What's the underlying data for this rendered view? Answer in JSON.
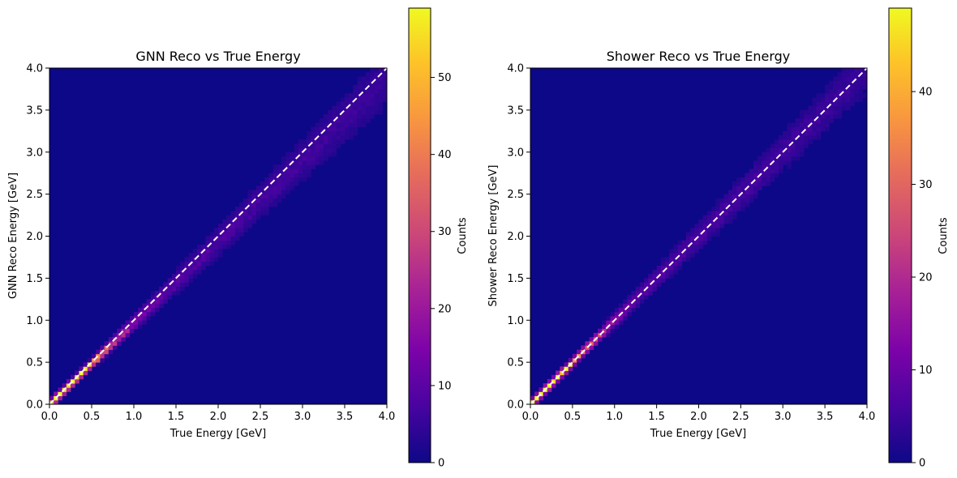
{
  "chart_data": [
    {
      "type": "heatmap",
      "title": "GNN Reco vs True Energy",
      "xlabel": "True Energy [GeV]",
      "ylabel": "GNN Reco Energy [GeV]",
      "xlim": [
        0,
        4
      ],
      "ylim": [
        0,
        4
      ],
      "xticks": [
        "0.0",
        "0.5",
        "1.0",
        "1.5",
        "2.0",
        "2.5",
        "3.0",
        "3.5",
        "4.0"
      ],
      "yticks": [
        "0.0",
        "0.5",
        "1.0",
        "1.5",
        "2.0",
        "2.5",
        "3.0",
        "3.5",
        "4.0"
      ],
      "reference_line": {
        "label": "y = x",
        "style": "dashed",
        "color": "#ffffff"
      },
      "colormap": "plasma",
      "colorbar": {
        "label": "Counts",
        "min": 0,
        "max": 59,
        "ticks": [
          "0",
          "10",
          "20",
          "30",
          "40",
          "50"
        ]
      },
      "distribution": {
        "center_slope": 0.97,
        "relative_width": 0.06,
        "peak_energy": 0.2
      }
    },
    {
      "type": "heatmap",
      "title": "Shower Reco vs True Energy",
      "xlabel": "True Energy [GeV]",
      "ylabel": "Shower Reco Energy [GeV]",
      "xlim": [
        0,
        4
      ],
      "ylim": [
        0,
        4
      ],
      "xticks": [
        "0.0",
        "0.5",
        "1.0",
        "1.5",
        "2.0",
        "2.5",
        "3.0",
        "3.5",
        "4.0"
      ],
      "yticks": [
        "0.0",
        "0.5",
        "1.0",
        "1.5",
        "2.0",
        "2.5",
        "3.0",
        "3.5",
        "4.0"
      ],
      "reference_line": {
        "label": "y = x",
        "style": "dashed",
        "color": "#ffffff"
      },
      "colormap": "plasma",
      "colorbar": {
        "label": "Counts",
        "min": 0,
        "max": 49,
        "ticks": [
          "0",
          "10",
          "20",
          "30",
          "40"
        ]
      },
      "distribution": {
        "center_slope": 1.0,
        "relative_width": 0.055,
        "peak_energy": 0.2
      }
    }
  ]
}
